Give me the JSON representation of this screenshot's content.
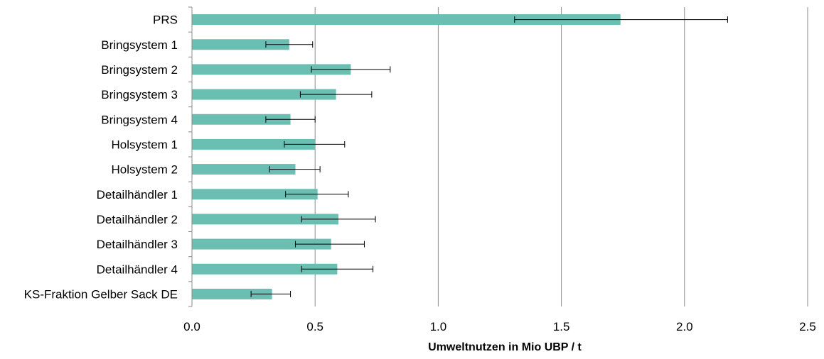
{
  "chart_data": {
    "type": "bar",
    "orientation": "horizontal",
    "title": "",
    "xlabel": "Umweltnutzen in Mio UBP / t",
    "ylabel": "",
    "xlim": [
      0,
      2.5
    ],
    "x_ticks": [
      "0.0",
      "0.5",
      "1.0",
      "1.5",
      "2.0",
      "2.5"
    ],
    "grid": "vertical",
    "legend": "none",
    "bar_color": "#6ABFB2",
    "categories": [
      "PRS",
      "Bringsystem 1",
      "Bringsystem 2",
      "Bringsystem 3",
      "Bringsystem 4",
      "Holsystem 1",
      "Holsystem 2",
      "Detailhändler 1",
      "Detailhändler 2",
      "Detailhändler 3",
      "Detailhändler 4",
      "KS-Fraktion Gelber Sack DE"
    ],
    "values": [
      1.74,
      0.395,
      0.645,
      0.585,
      0.4,
      0.5,
      0.42,
      0.51,
      0.595,
      0.565,
      0.59,
      0.325
    ],
    "error_low": [
      1.31,
      0.3,
      0.485,
      0.44,
      0.3,
      0.375,
      0.315,
      0.38,
      0.445,
      0.42,
      0.445,
      0.24
    ],
    "error_high": [
      2.175,
      0.49,
      0.805,
      0.73,
      0.5,
      0.62,
      0.52,
      0.635,
      0.745,
      0.7,
      0.735,
      0.4
    ]
  }
}
